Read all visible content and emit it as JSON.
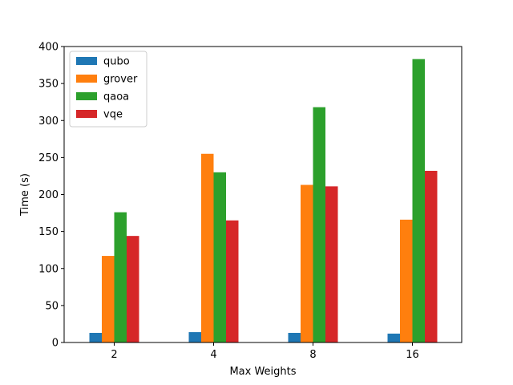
{
  "chart_data": {
    "type": "bar",
    "title": "",
    "xlabel": "Max Weights",
    "ylabel": "Time (s)",
    "categories": [
      "2",
      "4",
      "8",
      "16"
    ],
    "ylim": [
      0,
      400
    ],
    "yticks": [
      0,
      50,
      100,
      150,
      200,
      250,
      300,
      350,
      400
    ],
    "grid": false,
    "legend_position": "top-left",
    "series": [
      {
        "name": "qubo",
        "color": "#1f77b4",
        "values": [
          13,
          14,
          13,
          12
        ]
      },
      {
        "name": "grover",
        "color": "#ff7f0e",
        "values": [
          117,
          255,
          213,
          166
        ]
      },
      {
        "name": "qaoa",
        "color": "#2ca02c",
        "values": [
          176,
          230,
          318,
          383
        ]
      },
      {
        "name": "vqe",
        "color": "#d62728",
        "values": [
          144,
          165,
          211,
          232
        ]
      }
    ]
  }
}
